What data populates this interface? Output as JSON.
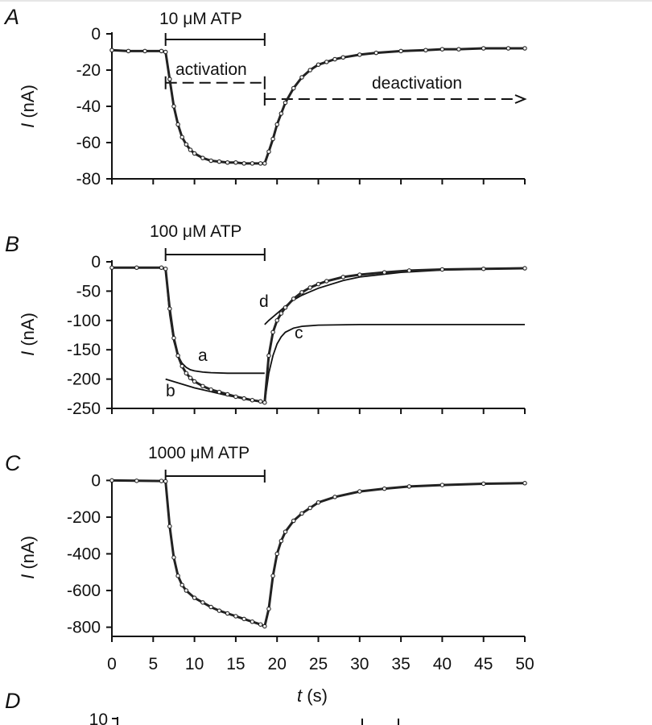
{
  "chart_data": [
    {
      "type": "line",
      "panel_label": "A",
      "annotation": "10 μM ATP",
      "ylabel_italic": "I",
      "ylabel_unit": " (nA)",
      "xlim": [
        0,
        50
      ],
      "ylim": [
        -80,
        0
      ],
      "yticks": [
        0,
        -20,
        -40,
        -60,
        -80
      ],
      "yticklabels": [
        "0",
        "-20",
        "-40",
        "-60",
        "-80"
      ],
      "xticks": [
        0,
        5,
        10,
        15,
        20,
        25,
        30,
        35,
        40,
        45,
        50
      ],
      "application": {
        "start": 6.5,
        "end": 18.5
      },
      "series": [
        {
          "x": [
            0,
            2,
            4,
            6,
            6.5,
            7,
            7.5,
            8,
            8.5,
            9,
            9.5,
            10,
            11,
            12,
            13,
            14,
            15,
            16,
            17,
            18,
            18.5,
            19,
            19.5,
            20,
            20.5,
            21,
            22,
            23,
            24,
            25,
            26,
            27,
            28,
            30,
            32,
            35,
            38,
            40,
            42,
            45,
            48,
            50
          ],
          "y": [
            -9,
            -9.5,
            -9.5,
            -9.5,
            -10,
            -25,
            -40,
            -50,
            -57,
            -61,
            -64,
            -66,
            -68.5,
            -70,
            -70.5,
            -71,
            -71,
            -71.5,
            -71.5,
            -71.5,
            -71.5,
            -65,
            -58,
            -50,
            -44,
            -38,
            -30,
            -24,
            -20,
            -17,
            -15.5,
            -14,
            -13,
            -11.5,
            -10.5,
            -9.5,
            -9,
            -8.5,
            -8.5,
            -8,
            -8,
            -8
          ]
        }
      ],
      "arrows": [
        {
          "label": "activation",
          "x_start": 6.5,
          "x_end": 18.5,
          "y": -27,
          "style": "dashed"
        },
        {
          "label": "deactivation",
          "x_start": 18.5,
          "x_end": 50,
          "y": -36,
          "style": "dashed-arrow"
        }
      ]
    },
    {
      "type": "line",
      "panel_label": "B",
      "annotation": "100 μM ATP",
      "ylabel_italic": "I",
      "ylabel_unit": " (nA)",
      "xlim": [
        0,
        50
      ],
      "ylim": [
        -250,
        0
      ],
      "yticks": [
        0,
        -50,
        -100,
        -150,
        -200,
        -250
      ],
      "yticklabels": [
        "0",
        "-50",
        "-100",
        "-150",
        "-200",
        "-250"
      ],
      "xticks": [
        0,
        5,
        10,
        15,
        20,
        25,
        30,
        35,
        40,
        45,
        50
      ],
      "application": {
        "start": 6.5,
        "end": 18.5
      },
      "series": [
        {
          "x": [
            0,
            3,
            6,
            6.5,
            7,
            7.5,
            8,
            8.5,
            9,
            9.5,
            10,
            11,
            12,
            13,
            14,
            15,
            16,
            17,
            18,
            18.5,
            19,
            19.5,
            20,
            20.5,
            21,
            22,
            23,
            24,
            25,
            26,
            28,
            30,
            33,
            36,
            40,
            45,
            50
          ],
          "y": [
            -10,
            -10,
            -10,
            -12,
            -80,
            -130,
            -160,
            -178,
            -190,
            -198,
            -204,
            -212,
            -218,
            -222,
            -226,
            -230,
            -233,
            -236,
            -238,
            -240,
            -160,
            -120,
            -100,
            -88,
            -78,
            -63,
            -52,
            -44,
            -38,
            -33,
            -26,
            -22,
            -18,
            -15,
            -13,
            -12,
            -11
          ]
        }
      ],
      "fits": [
        {
          "label": "a",
          "x": [
            6.5,
            7,
            7.5,
            8,
            8.5,
            9,
            9.5,
            10,
            11,
            12,
            14,
            16,
            18.5
          ],
          "y": [
            -12,
            -90,
            -135,
            -160,
            -173,
            -180,
            -184,
            -186,
            -188,
            -189,
            -190,
            -190,
            -190
          ]
        },
        {
          "label": "b",
          "x": [
            6.5,
            10,
            14,
            18.5
          ],
          "y": [
            -200,
            -215,
            -228,
            -240
          ]
        },
        {
          "label": "c",
          "x": [
            18.5,
            19,
            19.5,
            20,
            20.5,
            21,
            22,
            23,
            25,
            30,
            40,
            50
          ],
          "y": [
            -240,
            -190,
            -160,
            -140,
            -128,
            -120,
            -113,
            -110,
            -108,
            -107,
            -107,
            -107
          ]
        },
        {
          "label": "d",
          "x": [
            18.5,
            19,
            20,
            21,
            22,
            23,
            25,
            28,
            30,
            35,
            40,
            50
          ],
          "y": [
            -107,
            -100,
            -88,
            -76,
            -65,
            -57,
            -45,
            -32,
            -26,
            -18,
            -14,
            -11
          ]
        }
      ]
    },
    {
      "type": "line",
      "panel_label": "C",
      "annotation": "1000 μM ATP",
      "ylabel_italic": "I",
      "ylabel_unit": " (nA)",
      "xlim": [
        0,
        50
      ],
      "ylim": [
        -850,
        50
      ],
      "yticks": [
        0,
        -200,
        -400,
        -600,
        -800
      ],
      "yticklabels": [
        "0",
        "-200",
        "-400",
        "-600",
        "-800"
      ],
      "xticks": [
        0,
        5,
        10,
        15,
        20,
        25,
        30,
        35,
        40,
        45,
        50
      ],
      "xticklabels": [
        "0",
        "5",
        "10",
        "15",
        "20",
        "25",
        "30",
        "35",
        "40",
        "45",
        "50"
      ],
      "xlabel_italic": "t",
      "xlabel_unit": " (s)",
      "application": {
        "start": 6.5,
        "end": 18.5
      },
      "series": [
        {
          "x": [
            0,
            3,
            6,
            6.5,
            7,
            7.5,
            8,
            8.5,
            9,
            10,
            11,
            12,
            13,
            14,
            15,
            16,
            17,
            18,
            18.5,
            19,
            19.5,
            20,
            20.5,
            21,
            22,
            23,
            24,
            25,
            27,
            30,
            33,
            36,
            40,
            45,
            50
          ],
          "y": [
            0,
            -2,
            -3,
            -5,
            -250,
            -420,
            -520,
            -570,
            -600,
            -640,
            -665,
            -690,
            -710,
            -725,
            -740,
            -755,
            -770,
            -785,
            -795,
            -700,
            -520,
            -400,
            -330,
            -280,
            -220,
            -180,
            -150,
            -120,
            -90,
            -60,
            -45,
            -33,
            -25,
            -18,
            -15
          ]
        }
      ]
    },
    {
      "type": "line",
      "panel_label": "D",
      "yticklabels": [
        "10"
      ]
    }
  ]
}
